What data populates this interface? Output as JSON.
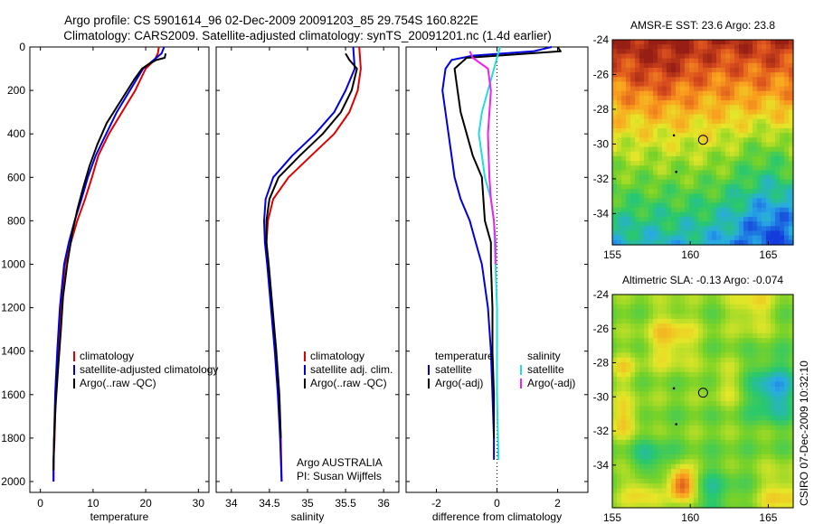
{
  "title_line1": "Argo profile: CS 5901614_96 02-Dec-2009 20091203_85 29.754S 160.822E",
  "title_line2": "Climatology: CARS2009. Satellite-adjusted climatology: synTS_20091201.nc (1.4d earlier)",
  "credit": "CSIRO 07-Dec-2009 10:32:10",
  "colors": {
    "climatology": "#dd0000",
    "satellite": "#0000dd",
    "argo": "#000000",
    "satellite_salinity": "#22dddd",
    "argo_salinity": "#ee22ee"
  },
  "chart_data": [
    {
      "id": "temperature",
      "type": "line",
      "xlabel": "temperature",
      "ylabel": "",
      "xlim": [
        -2,
        32
      ],
      "ylim": [
        2050,
        0
      ],
      "xticks": [
        "0",
        "10",
        "20",
        "30"
      ],
      "xtick_values": [
        0,
        10,
        20,
        30
      ],
      "yticks": [
        "0",
        "200",
        "400",
        "600",
        "800",
        "1000",
        "1200",
        "1400",
        "1600",
        "1800",
        "2000"
      ],
      "ytick_values": [
        0,
        200,
        400,
        600,
        800,
        1000,
        1200,
        1400,
        1600,
        1800,
        2000
      ],
      "legend": [
        "climatology",
        "satellite-adjusted climatology",
        "Argo(..raw -QC)"
      ],
      "series": [
        {
          "name": "climatology",
          "color": "#dd0000",
          "x": [
            22.5,
            22.3,
            21.7,
            20.0,
            18.0,
            15.5,
            13.0,
            11.0,
            9.8,
            8.5,
            7.0,
            5.8,
            4.7,
            3.9,
            3.3,
            2.9,
            2.7,
            2.5,
            2.5
          ],
          "y": [
            0,
            30,
            60,
            100,
            200,
            300,
            400,
            500,
            600,
            700,
            800,
            900,
            1000,
            1200,
            1400,
            1600,
            1800,
            1900,
            2000
          ]
        },
        {
          "name": "satellite-adjusted climatology",
          "color": "#0000dd",
          "x": [
            23.5,
            23.0,
            21.5,
            19.5,
            17.0,
            14.5,
            12.5,
            10.5,
            9.0,
            7.8,
            6.5,
            5.4,
            4.5,
            3.7,
            3.2,
            2.8,
            2.6,
            2.5,
            2.5
          ],
          "y": [
            0,
            30,
            60,
            100,
            200,
            300,
            400,
            500,
            600,
            700,
            800,
            900,
            1000,
            1200,
            1400,
            1600,
            1800,
            1900,
            2000
          ]
        },
        {
          "name": "Argo(..raw -QC)",
          "color": "#000000",
          "x": [
            23.8,
            23.6,
            22.0,
            20.5,
            19.3,
            17.8,
            15.2,
            12.6,
            10.8,
            9.3,
            8.1,
            7.0,
            6.1,
            5.1,
            4.3,
            3.9,
            3.3,
            2.9,
            2.6,
            2.5
          ],
          "y": [
            30,
            50,
            60,
            80,
            100,
            150,
            250,
            350,
            450,
            550,
            650,
            750,
            850,
            1000,
            1150,
            1300,
            1500,
            1650,
            1800,
            1950
          ]
        }
      ]
    },
    {
      "id": "salinity",
      "type": "line",
      "xlabel": "salinity",
      "ylabel": "",
      "xlim": [
        33.8,
        36.2
      ],
      "ylim": [
        2050,
        0
      ],
      "xticks": [
        "34",
        "34.5",
        "35",
        "35.5",
        "36"
      ],
      "xtick_values": [
        34,
        34.5,
        35,
        35.5,
        36
      ],
      "legend": [
        "climatology",
        "satellite adj. clim.",
        "Argo(..raw -QC)"
      ],
      "annotation": [
        "Argo AUSTRALIA",
        "PI: Susan Wijffels"
      ],
      "series": [
        {
          "name": "climatology",
          "color": "#dd0000",
          "x": [
            35.68,
            35.7,
            35.66,
            35.55,
            35.35,
            35.05,
            34.75,
            34.55,
            34.48,
            34.46,
            34.48,
            34.53,
            34.58,
            34.62,
            34.65,
            34.66
          ],
          "y": [
            0,
            100,
            200,
            300,
            400,
            500,
            600,
            700,
            800,
            900,
            1000,
            1200,
            1400,
            1600,
            1800,
            2000
          ]
        },
        {
          "name": "satellite adj. clim.",
          "color": "#0000dd",
          "x": [
            35.6,
            35.62,
            35.5,
            35.35,
            35.1,
            34.8,
            34.55,
            34.45,
            34.43,
            34.44,
            34.47,
            34.52,
            34.57,
            34.61,
            34.64,
            34.66
          ],
          "y": [
            0,
            100,
            200,
            300,
            400,
            500,
            600,
            700,
            800,
            900,
            1000,
            1200,
            1400,
            1600,
            1800,
            2000
          ]
        },
        {
          "name": "Argo(..raw -QC)",
          "color": "#000000",
          "x": [
            35.5,
            35.55,
            35.65,
            35.58,
            35.44,
            35.2,
            34.9,
            34.62,
            34.5,
            34.46,
            34.46,
            34.49,
            34.54,
            34.59,
            34.63,
            34.65
          ],
          "y": [
            30,
            60,
            100,
            200,
            300,
            400,
            500,
            600,
            700,
            800,
            900,
            1000,
            1200,
            1400,
            1600,
            1800
          ]
        }
      ]
    },
    {
      "id": "difference",
      "type": "line",
      "xlabel": "difference from climatology",
      "ylabel": "",
      "xlim": [
        -3,
        3
      ],
      "ylim": [
        2050,
        0
      ],
      "xticks": [
        "-2",
        "0",
        "2"
      ],
      "xtick_values": [
        -2,
        0,
        2
      ],
      "legend_headers": [
        "temperature",
        "salinity"
      ],
      "legend_left": [
        "satellite",
        "Argo(-adj)"
      ],
      "legend_right": [
        "satellite",
        "Argo(-adj)"
      ],
      "series": [
        {
          "name": "satellite",
          "color": "#0000dd",
          "x": [
            1.8,
            1.2,
            -0.8,
            -1.5,
            -1.7,
            -1.8,
            -1.6,
            -1.4,
            -1.2,
            -0.9,
            -0.7,
            -0.5,
            -0.3,
            -0.2,
            -0.15,
            -0.1,
            -0.1
          ],
          "y": [
            0,
            20,
            40,
            60,
            100,
            200,
            400,
            600,
            700,
            800,
            900,
            1000,
            1200,
            1400,
            1600,
            1800,
            1900
          ]
        },
        {
          "name": "Argo(-adj)",
          "color": "#000000",
          "x": [
            2.0,
            2.1,
            -1.0,
            -1.4,
            -1.3,
            -1.2,
            -1.0,
            -0.8,
            -0.5,
            -0.4,
            -0.2,
            -0.2,
            -0.15,
            -0.15,
            -0.1,
            -0.1
          ],
          "y": [
            0,
            20,
            50,
            100,
            200,
            300,
            400,
            500,
            600,
            800,
            900,
            1000,
            1200,
            1400,
            1600,
            1800
          ]
        },
        {
          "name": "satellite",
          "color": "#22dddd",
          "x": [
            0.1,
            0.0,
            -0.3,
            -0.5,
            -0.6,
            -0.5,
            -0.4,
            -0.2,
            -0.1,
            -0.05,
            0.0,
            0.0,
            0.05
          ],
          "y": [
            0,
            50,
            200,
            300,
            400,
            500,
            600,
            700,
            800,
            1000,
            1200,
            1600,
            1900
          ]
        },
        {
          "name": "Argo(-adj)",
          "color": "#ee22ee",
          "x": [
            -0.9,
            -0.8,
            -0.3,
            -0.2,
            -0.3,
            -0.25,
            -0.2,
            -0.1,
            -0.05,
            -0.05
          ],
          "y": [
            20,
            50,
            100,
            200,
            400,
            600,
            700,
            800,
            900,
            1000
          ]
        }
      ]
    }
  ],
  "maps": [
    {
      "id": "sst",
      "title": "AMSR-E SST: 23.6 Argo: 23.8",
      "xticks": [
        "155",
        "160",
        "165"
      ],
      "xtick_values": [
        155,
        160,
        165
      ],
      "yticks": [
        "-24",
        "-26",
        "-28",
        "-30",
        "-32",
        "-34"
      ],
      "ytick_values": [
        -24,
        -26,
        -28,
        -30,
        -32,
        -34
      ],
      "xlim": [
        155,
        166.6
      ],
      "ylim": [
        -24,
        -35.8
      ],
      "argo_position": {
        "lon": 160.822,
        "lat": -29.754
      }
    },
    {
      "id": "sla",
      "title": "Altimetric SLA: -0.13 Argo: -0.074",
      "xticks": [
        "155",
        "160",
        "165"
      ],
      "xtick_values": [
        155,
        160,
        165
      ],
      "yticks": [
        "-24",
        "-26",
        "-28",
        "-30",
        "-32",
        "-34"
      ],
      "ytick_values": [
        -24,
        -26,
        -28,
        -30,
        -32,
        -34
      ],
      "xlim": [
        155,
        166.6
      ],
      "ylim": [
        -24,
        -36.5
      ],
      "argo_position": {
        "lon": 160.822,
        "lat": -29.754
      }
    }
  ]
}
